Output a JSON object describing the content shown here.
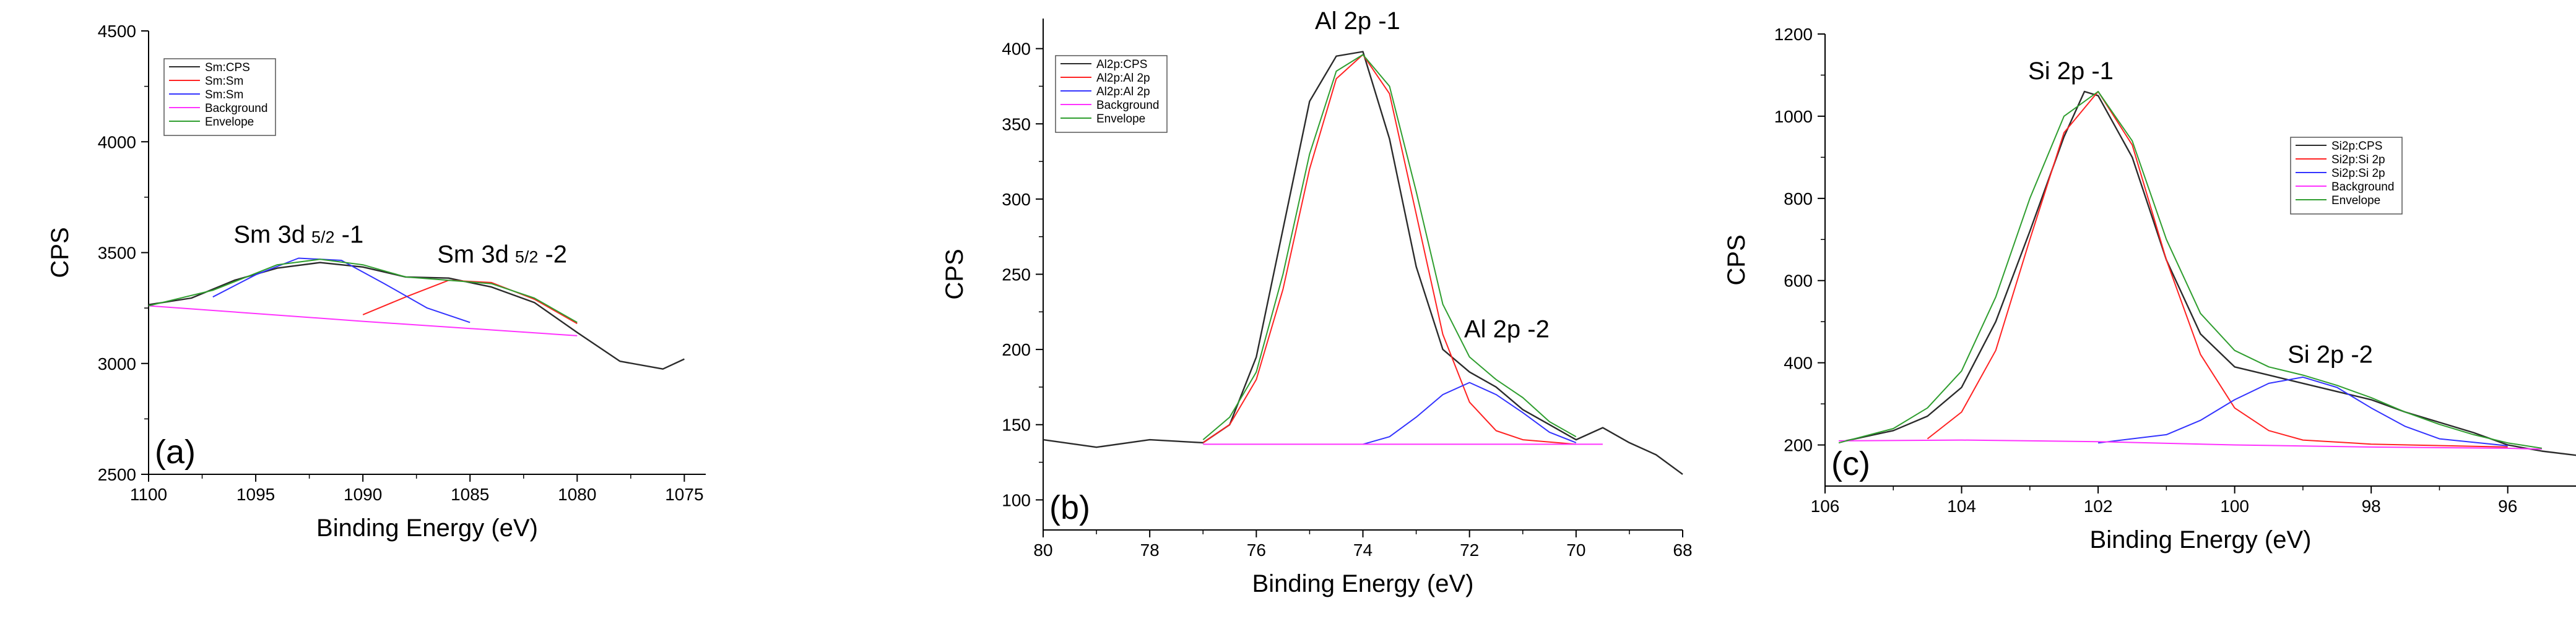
{
  "figure": {
    "panel_count": 3
  },
  "chart_data": [
    {
      "type": "line",
      "panel_label": "(a)",
      "xlabel": "Binding Energy (eV)",
      "ylabel": "CPS",
      "xlim": [
        1100,
        1074
      ],
      "ylim": [
        2500,
        4500
      ],
      "xticks": [
        1100,
        1095,
        1090,
        1085,
        1080,
        1075
      ],
      "yticks": [
        2500,
        3000,
        3500,
        4000,
        4500
      ],
      "legend": [
        "Sm:CPS",
        "Sm:Sm",
        "Sm:Sm",
        "Background",
        "Envelope"
      ],
      "legend_position": "top-left",
      "annotations": [
        {
          "text": "Sm 3d",
          "sub": "5/2",
          "suffix": " -1",
          "x": 1093,
          "y": 3545
        },
        {
          "text": "Sm 3d",
          "sub": "5/2",
          "suffix": " -2",
          "x": 1083.5,
          "y": 3455
        }
      ],
      "series": [
        {
          "name": "Sm:CPS",
          "color": "#2b2b2b",
          "x": [
            1100,
            1098,
            1096,
            1094,
            1092,
            1090,
            1088,
            1086,
            1084,
            1082,
            1080,
            1078,
            1076,
            1075
          ],
          "y": [
            3265,
            3295,
            3375,
            3430,
            3455,
            3435,
            3390,
            3385,
            3345,
            3275,
            3140,
            3010,
            2975,
            3020
          ]
        },
        {
          "name": "Sm:Sm",
          "color": "#ff2222",
          "x": [
            1090,
            1088,
            1086,
            1084,
            1082,
            1080
          ],
          "y": [
            3220,
            3300,
            3375,
            3365,
            3290,
            3180
          ]
        },
        {
          "name": "Sm:Sm",
          "color": "#3333ff",
          "x": [
            1097,
            1095,
            1093,
            1091,
            1089,
            1087,
            1085
          ],
          "y": [
            3300,
            3400,
            3475,
            3465,
            3360,
            3250,
            3185
          ]
        },
        {
          "name": "Background",
          "color": "#ff33ff",
          "x": [
            1100,
            1090,
            1080
          ],
          "y": [
            3260,
            3190,
            3125
          ]
        },
        {
          "name": "Envelope",
          "color": "#2f9e2f",
          "x": [
            1100,
            1097,
            1094,
            1092,
            1090,
            1088,
            1086,
            1084,
            1082,
            1080
          ],
          "y": [
            3260,
            3330,
            3445,
            3470,
            3445,
            3390,
            3375,
            3360,
            3295,
            3185
          ]
        }
      ]
    },
    {
      "type": "line",
      "panel_label": "(b)",
      "xlabel": "Binding Energy (eV)",
      "ylabel": "CPS",
      "xlim": [
        80,
        68
      ],
      "ylim": [
        80,
        420
      ],
      "xticks": [
        80,
        78,
        76,
        74,
        72,
        70,
        68
      ],
      "yticks": [
        100,
        150,
        200,
        250,
        300,
        350,
        400
      ],
      "legend": [
        "Al2p:CPS",
        "Al2p:Al 2p",
        "Al2p:Al 2p",
        "Background",
        "Envelope"
      ],
      "legend_position": "top-left",
      "annotations": [
        {
          "text": "Al 2p -1",
          "x": 74.1,
          "y": 413
        },
        {
          "text": "Al 2p -2",
          "x": 71.3,
          "y": 208
        }
      ],
      "series": [
        {
          "name": "Al2p:CPS",
          "color": "#2b2b2b",
          "x": [
            80,
            79,
            78,
            77,
            76.5,
            76,
            75.5,
            75,
            74.5,
            74,
            73.5,
            73,
            72.5,
            72,
            71.5,
            71,
            70.5,
            70,
            69.5,
            69,
            68.5,
            68
          ],
          "y": [
            140,
            135,
            140,
            138,
            150,
            195,
            280,
            365,
            395,
            398,
            340,
            255,
            200,
            185,
            175,
            160,
            150,
            140,
            148,
            138,
            130,
            117
          ]
        },
        {
          "name": "Al2p:Al 2p",
          "color": "#ff2222",
          "x": [
            77,
            76.5,
            76,
            75.5,
            75,
            74.5,
            74,
            73.5,
            73,
            72.5,
            72,
            71.5,
            71,
            70
          ],
          "y": [
            138,
            150,
            180,
            240,
            320,
            380,
            396,
            370,
            290,
            210,
            165,
            146,
            140,
            137
          ]
        },
        {
          "name": "Al2p:Al 2p",
          "color": "#3333ff",
          "x": [
            74,
            73.5,
            73,
            72.5,
            72,
            71.5,
            71,
            70.5,
            70
          ],
          "y": [
            137,
            142,
            155,
            170,
            178,
            170,
            158,
            145,
            138
          ]
        },
        {
          "name": "Background",
          "color": "#ff33ff",
          "x": [
            77,
            69.5
          ],
          "y": [
            137,
            137
          ]
        },
        {
          "name": "Envelope",
          "color": "#2f9e2f",
          "x": [
            77,
            76.5,
            76,
            75.5,
            75,
            74.5,
            74,
            73.5,
            73,
            72.5,
            72,
            71.5,
            71,
            70.5,
            70
          ],
          "y": [
            140,
            155,
            185,
            250,
            330,
            385,
            396,
            375,
            305,
            230,
            195,
            180,
            168,
            152,
            142
          ]
        }
      ]
    },
    {
      "type": "line",
      "panel_label": "(c)",
      "xlabel": "Binding Energy (eV)",
      "ylabel": "CPS",
      "xlim": [
        106,
        95
      ],
      "ylim": [
        100,
        1200
      ],
      "xticks": [
        106,
        104,
        102,
        100,
        98,
        96
      ],
      "yticks": [
        200,
        400,
        600,
        800,
        1000,
        1200
      ],
      "legend": [
        "Si2p:CPS",
        "Si2p:Si 2p",
        "Si2p:Si 2p",
        "Background",
        "Envelope"
      ],
      "legend_position": "top-right",
      "annotations": [
        {
          "text": "Si 2p -1",
          "x": 102.4,
          "y": 1090
        },
        {
          "text": "Si 2p -2",
          "x": 98.6,
          "y": 400
        }
      ],
      "series": [
        {
          "name": "Si2p:CPS",
          "color": "#2b2b2b",
          "x": [
            105.7,
            105,
            104.5,
            104,
            103.5,
            103,
            102.5,
            102.2,
            102,
            101.5,
            101,
            100.5,
            100,
            99.5,
            99,
            98.5,
            98,
            97.5,
            97,
            96.5,
            96,
            95.5,
            95
          ],
          "y": [
            210,
            235,
            270,
            340,
            500,
            720,
            950,
            1060,
            1050,
            900,
            650,
            470,
            390,
            370,
            350,
            330,
            310,
            280,
            255,
            230,
            200,
            185,
            175
          ]
        },
        {
          "name": "Si2p:Si 2p",
          "color": "#ff2222",
          "x": [
            104.5,
            104,
            103.5,
            103,
            102.5,
            102,
            101.5,
            101,
            100.5,
            100,
            99.5,
            99,
            98,
            96
          ],
          "y": [
            215,
            280,
            430,
            700,
            960,
            1060,
            930,
            650,
            420,
            290,
            235,
            212,
            202,
            195
          ]
        },
        {
          "name": "Si2p:Si 2p",
          "color": "#3333ff",
          "x": [
            102,
            101,
            100.5,
            100,
            99.5,
            99,
            98.5,
            98,
            97.5,
            97,
            96
          ],
          "y": [
            205,
            225,
            260,
            310,
            350,
            365,
            340,
            290,
            245,
            215,
            198
          ]
        },
        {
          "name": "Background",
          "color": "#ff33ff",
          "x": [
            105.8,
            104,
            102,
            100,
            98,
            96,
            95.5
          ],
          "y": [
            210,
            212,
            208,
            200,
            195,
            192,
            190
          ]
        },
        {
          "name": "Envelope",
          "color": "#2f9e2f",
          "x": [
            105.8,
            105,
            104.5,
            104,
            103.5,
            103,
            102.5,
            102,
            101.5,
            101,
            100.5,
            100,
            99.5,
            99,
            98.5,
            98,
            97.5,
            97,
            96.5,
            96,
            95.5
          ],
          "y": [
            205,
            240,
            290,
            380,
            560,
            800,
            1000,
            1060,
            940,
            700,
            520,
            430,
            390,
            370,
            345,
            315,
            280,
            250,
            225,
            205,
            192
          ]
        }
      ]
    }
  ]
}
